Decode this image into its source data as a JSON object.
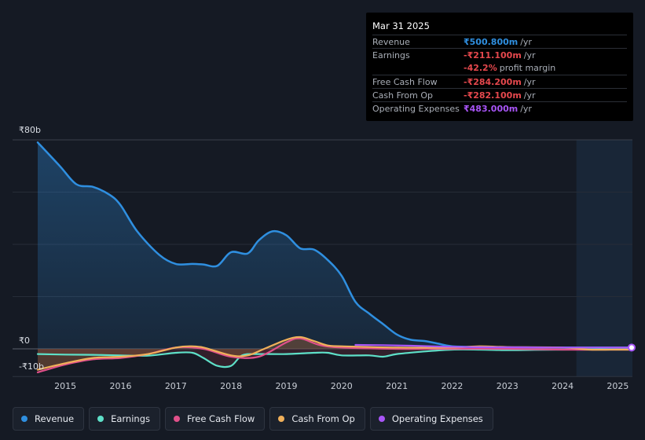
{
  "tooltip": {
    "date": "Mar 31 2025",
    "rows": [
      {
        "label": "Revenue",
        "value": "₹500.800m",
        "unit": "/yr",
        "color": "#2f8fe0"
      },
      {
        "label": "Earnings",
        "value": "-₹211.100m",
        "unit": "/yr",
        "color": "#e5484d"
      },
      {
        "label": "",
        "value": "-42.2%",
        "unit": "profit margin",
        "color": "#e5484d"
      },
      {
        "label": "Free Cash Flow",
        "value": "-₹284.200m",
        "unit": "/yr",
        "color": "#e5484d"
      },
      {
        "label": "Cash From Op",
        "value": "-₹282.100m",
        "unit": "/yr",
        "color": "#e5484d"
      },
      {
        "label": "Operating Expenses",
        "value": "₹483.000m",
        "unit": "/yr",
        "color": "#a855f7"
      }
    ]
  },
  "axis": {
    "y_top": "₹80b",
    "y_zero": "₹0",
    "y_bottom": "-₹10b"
  },
  "legend": [
    {
      "label": "Revenue",
      "color": "#2f8fe0"
    },
    {
      "label": "Earnings",
      "color": "#5ee0c8"
    },
    {
      "label": "Free Cash Flow",
      "color": "#e0508a"
    },
    {
      "label": "Cash From Op",
      "color": "#f0b05a"
    },
    {
      "label": "Operating Expenses",
      "color": "#a855f7"
    }
  ],
  "chart_data": {
    "type": "line",
    "title": "",
    "xlabel": "",
    "ylabel": "",
    "unit": "₹b",
    "ylim": [
      -10,
      80
    ],
    "x_ticks": [
      "2015",
      "2016",
      "2017",
      "2018",
      "2019",
      "2020",
      "2021",
      "2022",
      "2023",
      "2024",
      "2025"
    ],
    "highlight_from": 2024.25,
    "series": [
      {
        "name": "Revenue",
        "color": "#2f8fe0",
        "fill": true,
        "x": [
          2014.5,
          2014.9,
          2015.2,
          2015.5,
          2015.8,
          2016.0,
          2016.3,
          2016.7,
          2017.0,
          2017.3,
          2017.5,
          2017.75,
          2018.0,
          2018.3,
          2018.5,
          2018.75,
          2019.0,
          2019.25,
          2019.5,
          2019.75,
          2020.0,
          2020.25,
          2020.5,
          2020.75,
          2021.0,
          2021.25,
          2021.5,
          2021.75,
          2022.0,
          2022.5,
          2023.0,
          2023.5,
          2024.0,
          2024.5,
          2025.0,
          2025.25
        ],
        "values": [
          79,
          70,
          63,
          62,
          59,
          55,
          45,
          36,
          32.5,
          32.5,
          32.3,
          31.8,
          37,
          36.5,
          41.5,
          45,
          43.5,
          38.5,
          38,
          34,
          28,
          18,
          13.5,
          9.5,
          5.5,
          3.5,
          3,
          2,
          1,
          0.7,
          0.5,
          0.5,
          0.5,
          0.5,
          0.5,
          0.5
        ]
      },
      {
        "name": "Earnings",
        "color": "#5ee0c8",
        "x": [
          2014.5,
          2015.0,
          2015.5,
          2016.0,
          2016.5,
          2017.0,
          2017.3,
          2017.5,
          2017.75,
          2018.0,
          2018.2,
          2018.5,
          2019.0,
          2019.5,
          2019.75,
          2020.0,
          2020.5,
          2020.75,
          2021.0,
          2021.5,
          2022.0,
          2022.5,
          2023.0,
          2023.5,
          2024.0,
          2024.5,
          2025.0,
          2025.25
        ],
        "values": [
          -2,
          -2.2,
          -2.3,
          -2.5,
          -2.6,
          -1.5,
          -1.5,
          -3.5,
          -6.5,
          -6.5,
          -2.5,
          -2,
          -2,
          -1.5,
          -1.5,
          -2.5,
          -2.5,
          -3,
          -2,
          -1,
          -0.3,
          -0.3,
          -0.5,
          -0.4,
          -0.3,
          -0.2,
          -0.2,
          -0.2
        ]
      },
      {
        "name": "Free Cash Flow",
        "color": "#e0508a",
        "x": [
          2014.5,
          2015.0,
          2015.5,
          2016.0,
          2016.5,
          2017.0,
          2017.5,
          2018.0,
          2018.5,
          2019.0,
          2019.25,
          2019.6,
          2020.0,
          2021.0,
          2022.0,
          2023.0,
          2024.0,
          2025.0,
          2025.25
        ],
        "values": [
          -9,
          -6,
          -4,
          -3.5,
          -2,
          0.5,
          0,
          -3,
          -3,
          2.5,
          4,
          1.5,
          0.5,
          0,
          0,
          0,
          -0.3,
          -0.3,
          -0.3
        ]
      },
      {
        "name": "Cash From Op",
        "color": "#f0b05a",
        "x": [
          2014.5,
          2015.0,
          2015.5,
          2016.0,
          2016.5,
          2017.0,
          2017.25,
          2017.5,
          2018.0,
          2018.3,
          2018.6,
          2019.0,
          2019.25,
          2019.5,
          2019.75,
          2020.0,
          2021.0,
          2022.0,
          2022.5,
          2023.0,
          2024.0,
          2024.5,
          2025.0,
          2025.25
        ],
        "values": [
          -8,
          -5.5,
          -3.5,
          -3,
          -2,
          0.5,
          1,
          0.5,
          -2.5,
          -2.5,
          0,
          3.5,
          4.5,
          3,
          1.3,
          1,
          0.5,
          0.5,
          1,
          0.7,
          0.5,
          -0.3,
          -0.3,
          -0.3
        ]
      },
      {
        "name": "Operating Expenses",
        "color": "#a855f7",
        "x": [
          2020.25,
          2020.75,
          2021.25,
          2021.75,
          2022.25,
          2022.75,
          2023.25,
          2023.75,
          2024.25,
          2024.75,
          2025.25
        ],
        "values": [
          1.5,
          1.4,
          1.2,
          0.9,
          0.7,
          0.6,
          0.6,
          0.5,
          0.5,
          0.5,
          0.5
        ]
      }
    ]
  }
}
